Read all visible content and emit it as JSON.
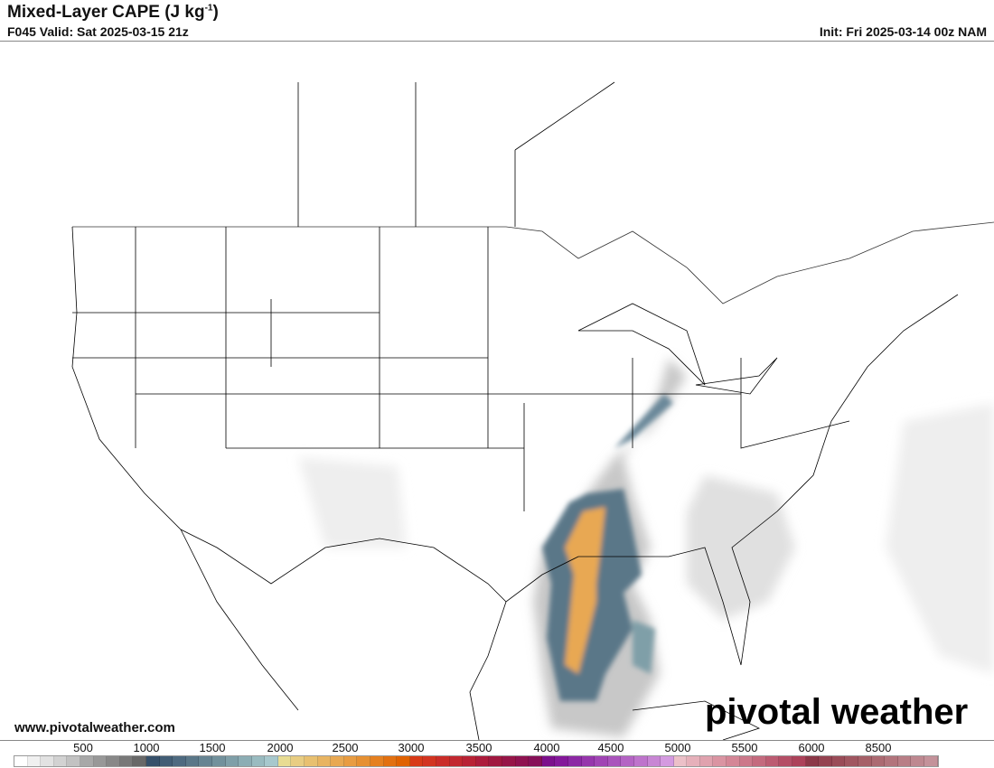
{
  "header": {
    "title": "Mixed-Layer CAPE (J kg",
    "title_sup": "-1",
    "title_close": ")",
    "valid": "F045 Valid: Sat 2025-03-15 21z",
    "init": "Init: Fri 2025-03-14 00z NAM"
  },
  "footer": {
    "website": "www.pivotalweather.com",
    "logo_text": "pivotal weather"
  },
  "colorbar": {
    "labels": [
      "500",
      "1000",
      "1500",
      "2000",
      "2500",
      "3000",
      "3500",
      "4000",
      "4500",
      "5000",
      "5500",
      "6000",
      "8500"
    ],
    "colors": [
      "#ffffff",
      "#f0f0f0",
      "#e2e2e2",
      "#d2d2d2",
      "#c2c2c2",
      "#a8a8a8",
      "#989898",
      "#888888",
      "#787878",
      "#686868",
      "#36506a",
      "#425d75",
      "#4e6a80",
      "#5a7788",
      "#668492",
      "#72919c",
      "#7f9fa8",
      "#8cadb4",
      "#99bbc0",
      "#a7c8cd",
      "#e8dc92",
      "#e8cd82",
      "#e8c070",
      "#e8b462",
      "#e8a852",
      "#e89c42",
      "#e69032",
      "#e58020",
      "#e27010",
      "#e06200",
      "#d83a18",
      "#d23420",
      "#ca2c28",
      "#c22830",
      "#b82235",
      "#ac1c3c",
      "#a01840",
      "#961548",
      "#8e1250",
      "#861058",
      "#7c108c",
      "#84189a",
      "#8c28a4",
      "#9636ac",
      "#a044b4",
      "#aa54bc",
      "#b464c4",
      "#be74cc",
      "#c886d4",
      "#d49ae0",
      "#ecc0c8",
      "#e6b0ba",
      "#e0a2ae",
      "#da94a2",
      "#d48696",
      "#cc788a",
      "#c46a7e",
      "#bc5c72",
      "#b44e66",
      "#ac425a",
      "#8c3848",
      "#944250",
      "#9a4c58",
      "#a05660",
      "#a66068",
      "#ac6a72",
      "#b2747c",
      "#b87e86",
      "#be8890",
      "#c4929a"
    ],
    "accent_orange": "#e89c42",
    "accent_blue": "#4e6a80"
  }
}
